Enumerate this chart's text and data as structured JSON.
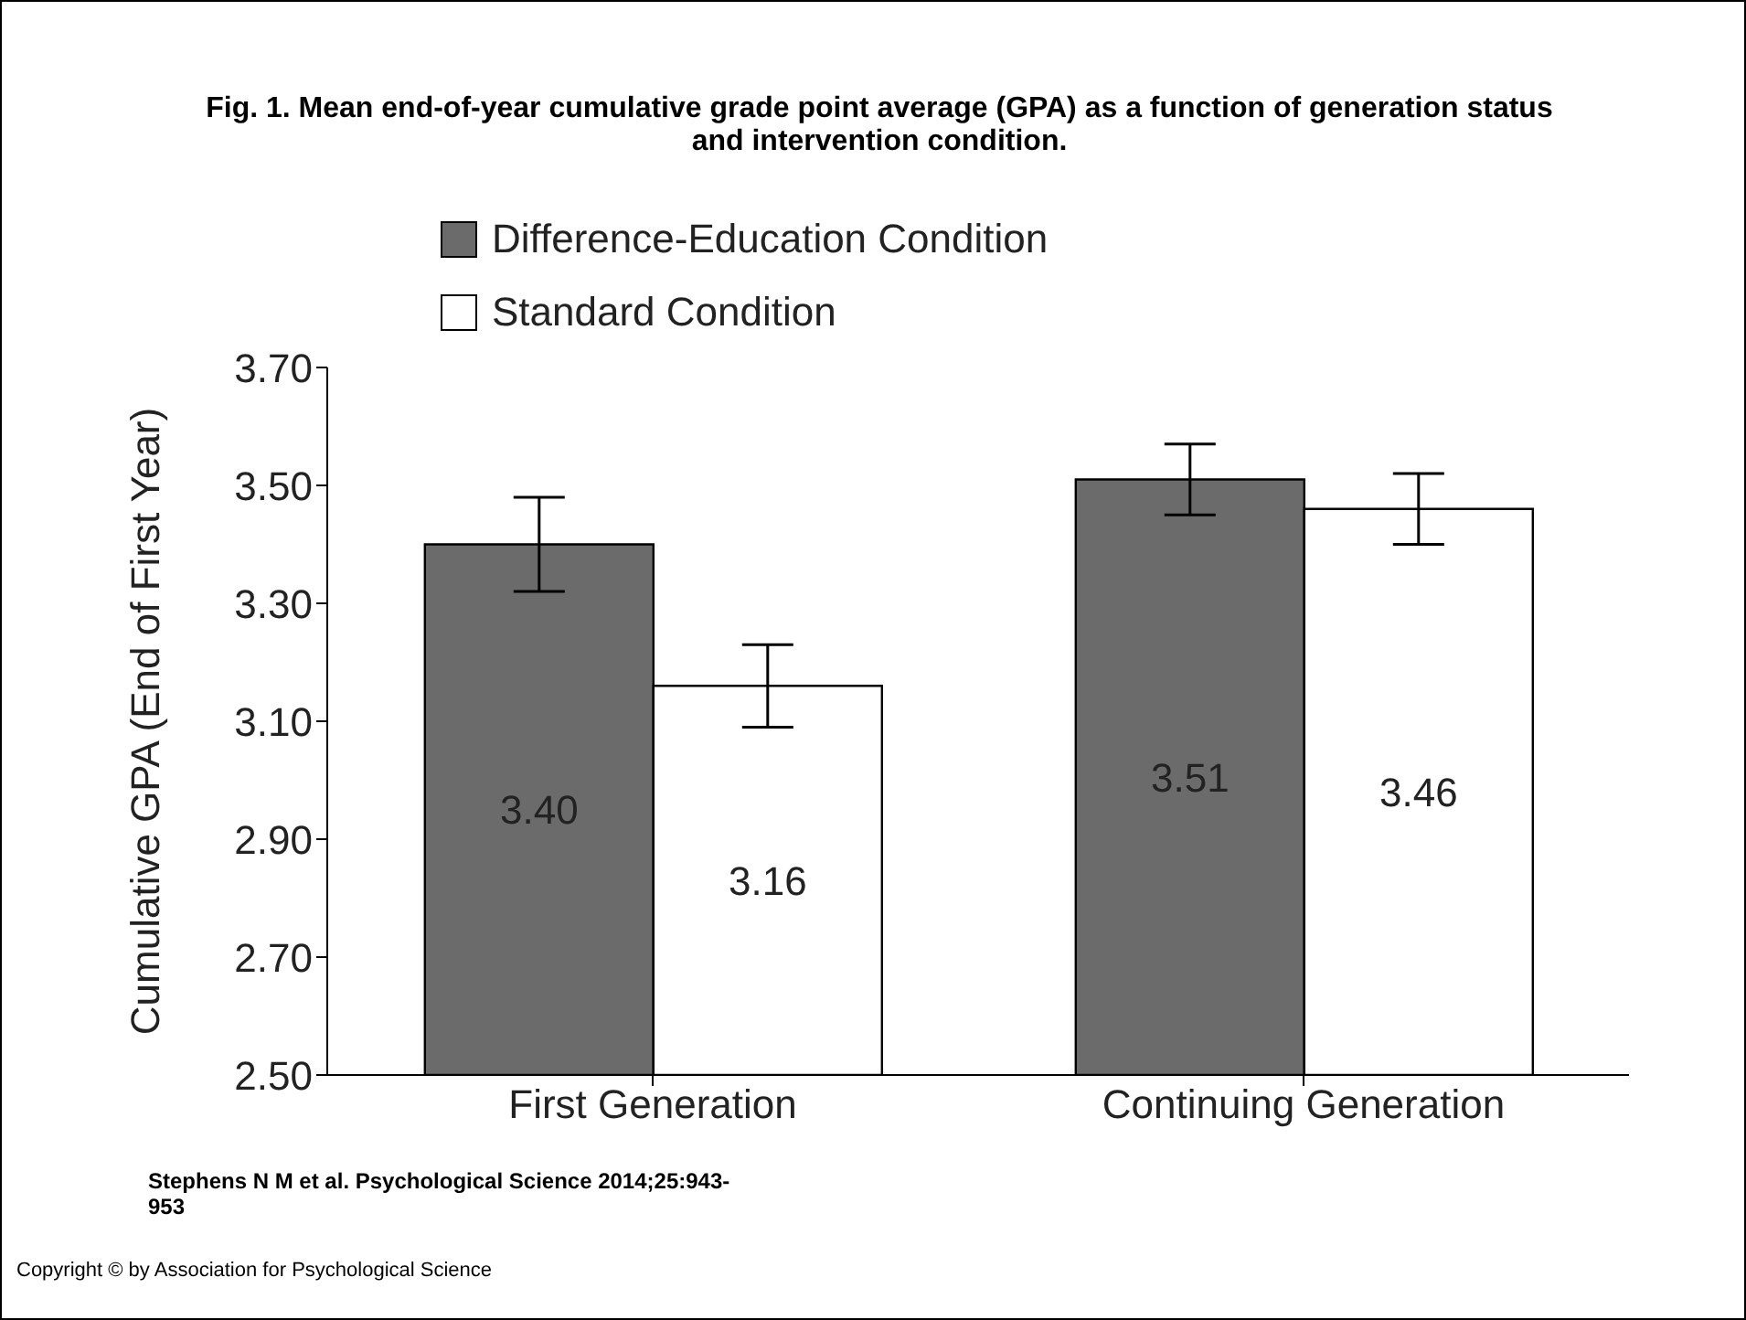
{
  "chart_data": {
    "type": "bar",
    "title": "Fig. 1. Mean end-of-year cumulative grade point average (GPA) as a function of generation status and intervention condition.",
    "ylabel": "Cumulative GPA (End of First Year)",
    "categories": [
      "First Generation",
      "Continuing Generation"
    ],
    "series": [
      {
        "name": "Difference-Education Condition",
        "color": "#6b6b6b",
        "values": [
          3.4,
          3.51
        ],
        "value_labels": [
          "3.40",
          "3.51"
        ],
        "errors": [
          0.08,
          0.06
        ]
      },
      {
        "name": "Standard Condition",
        "color": "#ffffff",
        "values": [
          3.16,
          3.46
        ],
        "value_labels": [
          "3.16",
          "3.46"
        ],
        "errors": [
          0.07,
          0.06
        ]
      }
    ],
    "ylim": [
      2.5,
      3.7
    ],
    "yticks": [
      {
        "value": 2.5,
        "label": "2.50"
      },
      {
        "value": 2.7,
        "label": "2.70"
      },
      {
        "value": 2.9,
        "label": "2.90"
      },
      {
        "value": 3.1,
        "label": "3.10"
      },
      {
        "value": 3.3,
        "label": "3.30"
      },
      {
        "value": 3.5,
        "label": "3.50"
      },
      {
        "value": 3.7,
        "label": "3.70"
      }
    ],
    "grid": false,
    "legend": "top left",
    "annotations": [
      "Stephens N M et al. Psychological Science 2014;25:943-953",
      "Copyright © by Association for Psychological Science"
    ]
  }
}
